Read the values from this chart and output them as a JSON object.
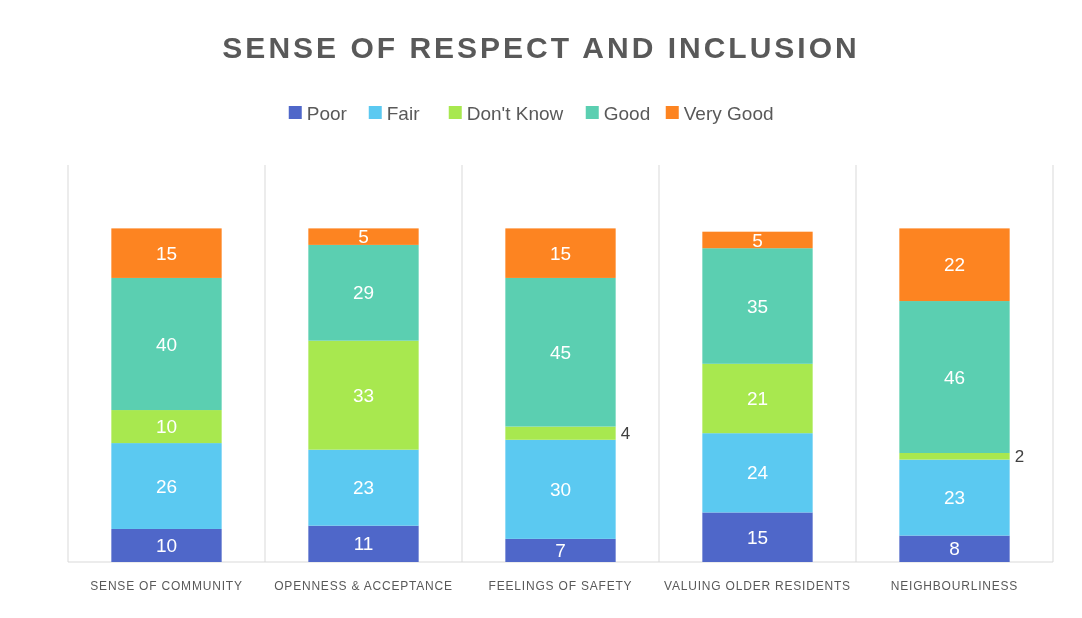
{
  "chart_data": {
    "type": "bar",
    "title": "SENSE OF RESPECT AND INCLUSION",
    "stacked": true,
    "data_labels": true,
    "legend": "top",
    "grid": "x",
    "categories": [
      "SENSE OF COMMUNITY",
      "OPENNESS & ACCEPTANCE",
      "FEELINGS OF SAFETY",
      "VALUING OLDER RESIDENTS",
      "NEIGHBOURLINESS"
    ],
    "series": [
      {
        "name": "Poor",
        "color": "#4f67c9",
        "values": [
          10,
          11,
          7,
          15,
          8
        ]
      },
      {
        "name": "Fair",
        "color": "#5bc9f1",
        "values": [
          26,
          23,
          30,
          24,
          23
        ]
      },
      {
        "name": "Don't Know",
        "color": "#a8e84f",
        "values": [
          10,
          33,
          4,
          21,
          2
        ]
      },
      {
        "name": "Good",
        "color": "#5bcfb1",
        "values": [
          40,
          29,
          45,
          35,
          46
        ]
      },
      {
        "name": "Very Good",
        "color": "#fd8421",
        "values": [
          15,
          5,
          15,
          5,
          22
        ]
      }
    ]
  }
}
